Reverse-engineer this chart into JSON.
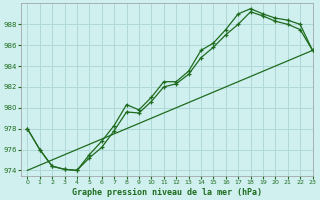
{
  "title": "Graphe pression niveau de la mer (hPa)",
  "bg_color": "#d0f0f0",
  "grid_color": "#b0d8d8",
  "line_color": "#1e6b1e",
  "xlim": [
    -0.5,
    23
  ],
  "ylim": [
    973.5,
    990.0
  ],
  "yticks": [
    974,
    976,
    978,
    980,
    982,
    984,
    986,
    988
  ],
  "xticks": [
    0,
    1,
    2,
    3,
    4,
    5,
    6,
    7,
    8,
    9,
    10,
    11,
    12,
    13,
    14,
    15,
    16,
    17,
    18,
    19,
    20,
    21,
    22,
    23
  ],
  "series1_x": [
    0,
    1,
    2,
    3,
    4,
    5,
    6,
    7,
    8,
    9,
    10,
    11,
    12,
    13,
    14,
    15,
    16,
    17,
    18,
    19,
    20,
    21,
    22,
    23
  ],
  "series1_y": [
    978.0,
    976.0,
    974.4,
    974.1,
    974.0,
    975.2,
    976.2,
    977.8,
    979.6,
    979.5,
    980.6,
    982.0,
    982.3,
    983.2,
    984.8,
    985.8,
    987.0,
    988.0,
    989.2,
    988.8,
    988.3,
    988.0,
    987.5,
    985.5
  ],
  "series2_x": [
    0,
    1,
    2,
    3,
    4,
    5,
    6,
    7,
    8,
    9,
    10,
    11,
    12,
    13,
    14,
    15,
    16,
    17,
    18,
    19,
    20,
    21,
    22,
    23
  ],
  "series2_y": [
    978.0,
    976.0,
    974.4,
    974.1,
    974.0,
    975.5,
    976.8,
    978.3,
    980.3,
    979.8,
    981.0,
    982.5,
    982.5,
    983.5,
    985.5,
    986.2,
    987.5,
    989.0,
    989.5,
    989.0,
    988.6,
    988.4,
    988.0,
    985.5
  ],
  "series3_x": [
    0,
    23
  ],
  "series3_y": [
    974.0,
    985.5
  ]
}
